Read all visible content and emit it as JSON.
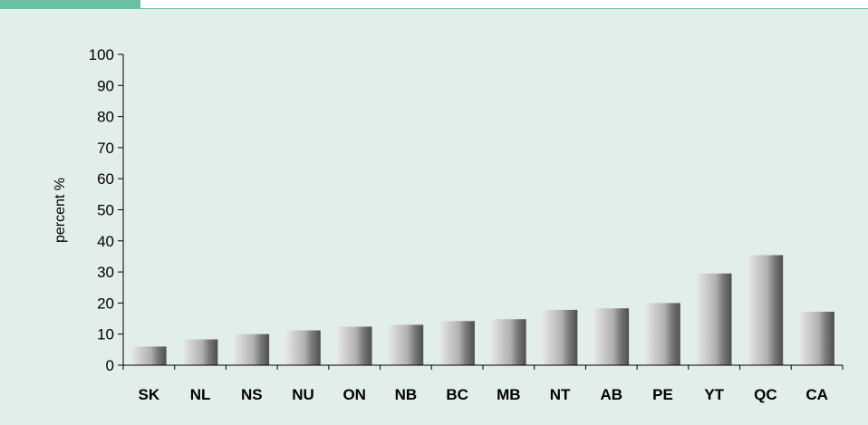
{
  "colors": {
    "accent": "#6bbfa3",
    "panel_background": "#e2eeea",
    "bar_light": "#e6e6e6",
    "bar_dark": "#555555"
  },
  "chart_data": {
    "type": "bar",
    "categories": [
      "SK",
      "NL",
      "NS",
      "NU",
      "ON",
      "NB",
      "BC",
      "MB",
      "NT",
      "AB",
      "PE",
      "YT",
      "QC",
      "CA"
    ],
    "values": [
      6,
      8.3,
      10,
      11.2,
      12.4,
      13,
      14.2,
      14.8,
      17.8,
      18.3,
      20,
      29.5,
      35.4,
      17.2
    ],
    "ylabel": "percent %",
    "xlabel": "",
    "title": "",
    "ylim": [
      0,
      100
    ],
    "yticks": [
      0,
      10,
      20,
      30,
      40,
      50,
      60,
      70,
      80,
      90,
      100
    ],
    "grid": false,
    "legend": false
  }
}
